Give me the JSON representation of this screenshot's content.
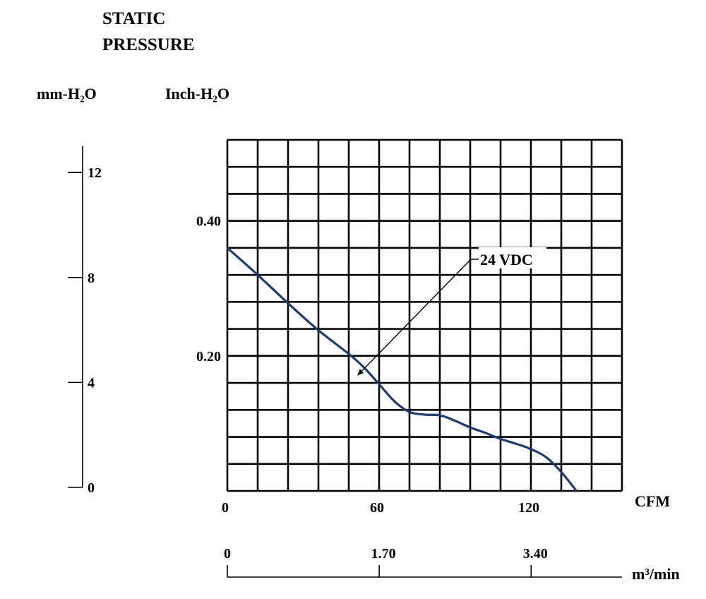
{
  "chart_data": {
    "type": "line",
    "title": [
      "STATIC",
      "PRESSURE"
    ],
    "ylabel_left": "mm-H₂O",
    "ylabel_right": "Inch-H₂O",
    "xlabel": "CFM",
    "xlabel_secondary": "m³/min",
    "grid": true,
    "xlim": [
      0,
      156
    ],
    "ylim_inch": [
      0,
      0.52
    ],
    "ylim_mm": [
      0,
      13
    ],
    "x_ticks": [
      {
        "value": 0,
        "label": "0"
      },
      {
        "value": 60,
        "label": "60"
      },
      {
        "value": 120,
        "label": "120"
      }
    ],
    "y_ticks_inch": [
      {
        "value": 0.2,
        "label": "0.20"
      },
      {
        "value": 0.4,
        "label": "0.40"
      }
    ],
    "y_ticks_mm": [
      {
        "value": 0,
        "label": "0"
      },
      {
        "value": 4,
        "label": "4"
      },
      {
        "value": 8,
        "label": "8"
      },
      {
        "value": 12,
        "label": "12"
      }
    ],
    "x2_ticks": [
      {
        "value": 0,
        "label": "0"
      },
      {
        "value": 1.7,
        "label": "1.70"
      },
      {
        "value": 3.4,
        "label": "3.40"
      }
    ],
    "series": [
      {
        "name": "24 VDC",
        "color": "#1f3a6e",
        "x": [
          0,
          12,
          24,
          36,
          48,
          54,
          60,
          66,
          72,
          78,
          84,
          90,
          96,
          102,
          108,
          114,
          120,
          126,
          132,
          138
        ],
        "y": [
          0.36,
          0.32,
          0.278,
          0.238,
          0.203,
          0.183,
          0.158,
          0.133,
          0.117,
          0.113,
          0.112,
          0.104,
          0.094,
          0.086,
          0.077,
          0.07,
          0.062,
          0.05,
          0.028,
          0.0
        ]
      }
    ],
    "annotations": [
      {
        "text": "24 VDC",
        "target_series": "24 VDC",
        "at_x": 53
      }
    ]
  }
}
